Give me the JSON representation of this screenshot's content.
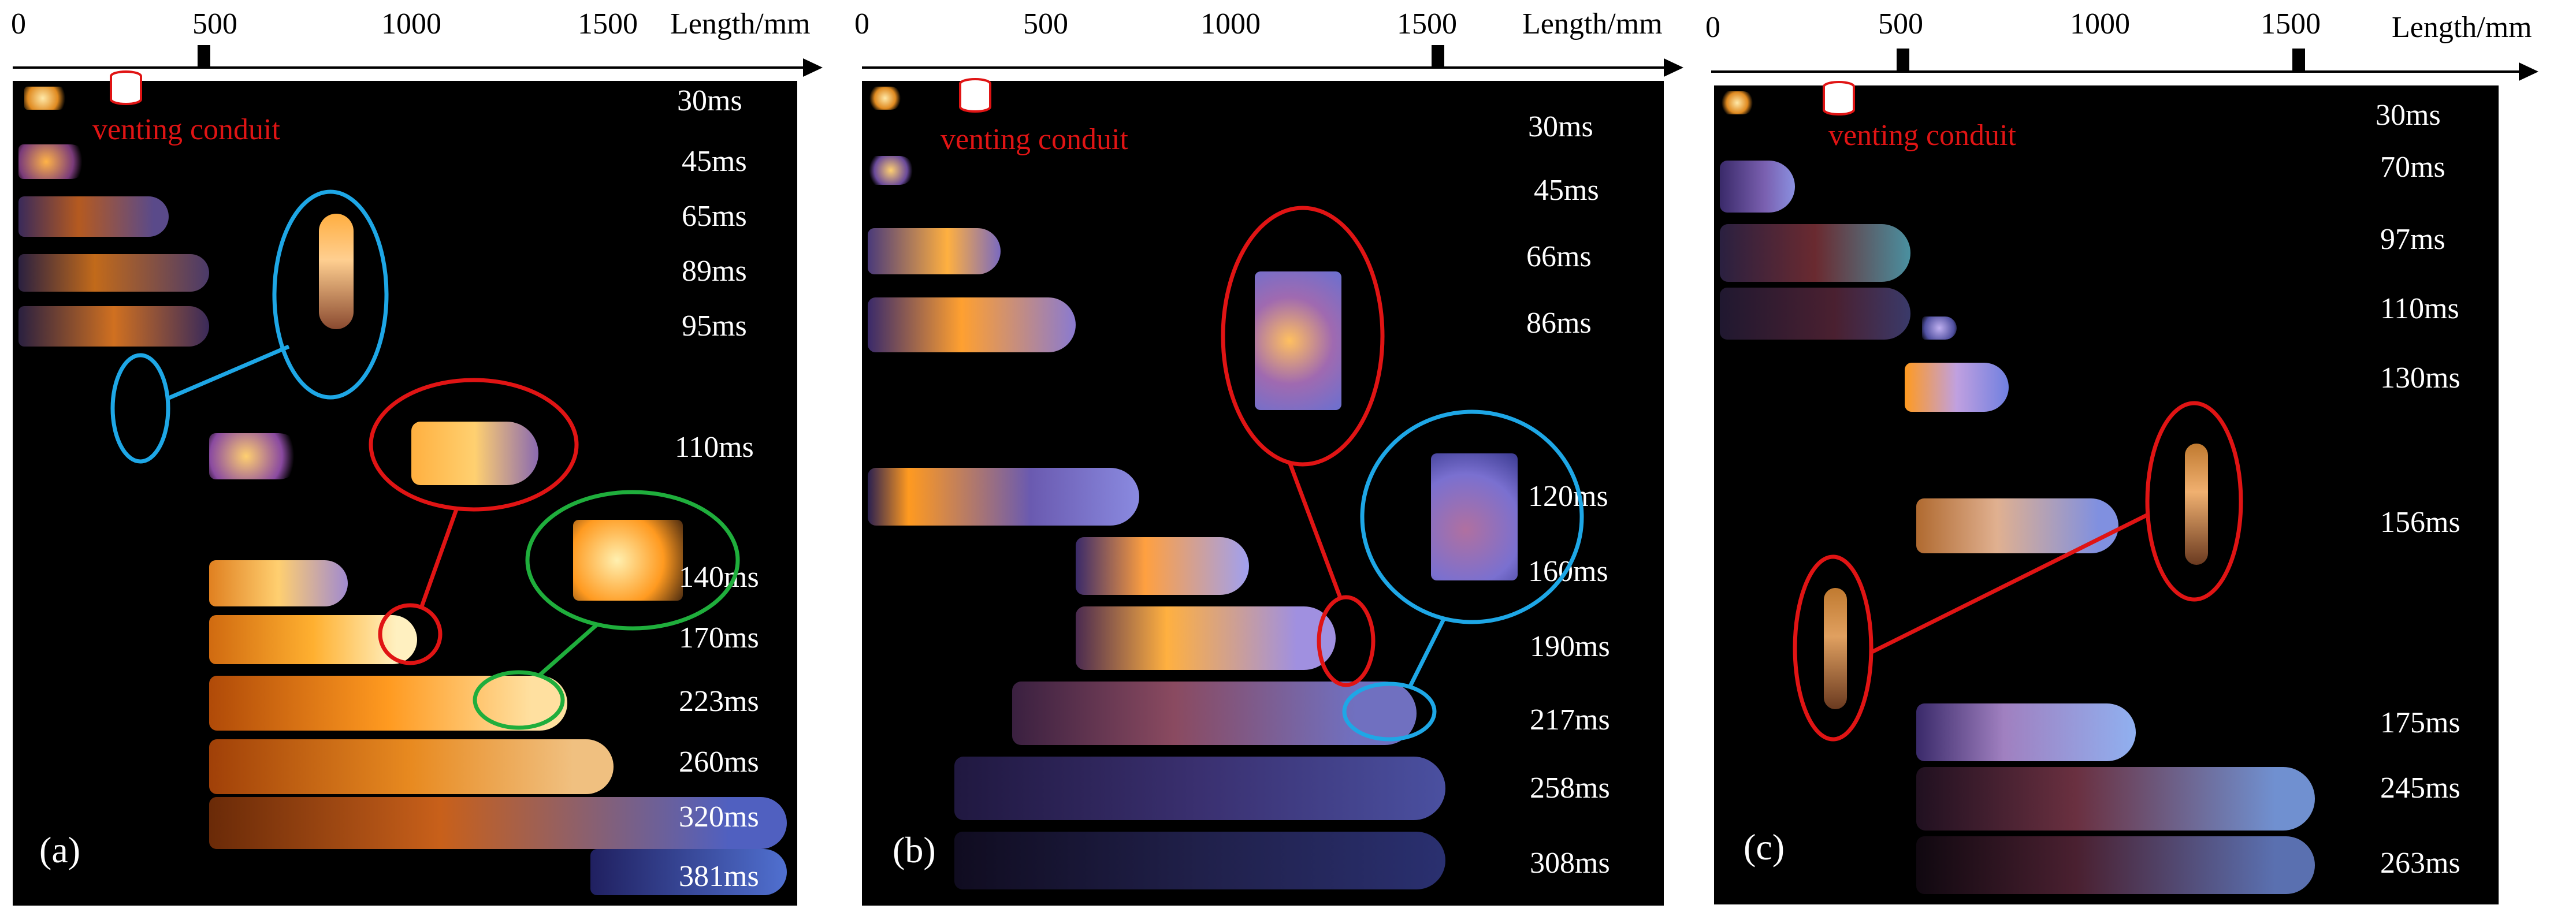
{
  "axis": {
    "title": "Length/mm",
    "ticks": [
      "0",
      "500",
      "1000",
      "1500"
    ]
  },
  "vent_label": "venting conduit",
  "panels": [
    {
      "label": "(a)",
      "times": [
        "30ms",
        "45ms",
        "65ms",
        "89ms",
        "95ms",
        "110ms",
        "140ms",
        "170ms",
        "223ms",
        "260ms",
        "320ms",
        "381ms"
      ]
    },
    {
      "label": "(b)",
      "times": [
        "30ms",
        "45ms",
        "66ms",
        "86ms",
        "120ms",
        "160ms",
        "190ms",
        "217ms",
        "258ms",
        "308ms"
      ]
    },
    {
      "label": "(c)",
      "times": [
        "30ms",
        "70ms",
        "97ms",
        "110ms",
        "130ms",
        "156ms",
        "175ms",
        "245ms",
        "263ms"
      ]
    }
  ],
  "colors": {
    "circle_blue": "#1ea7e6",
    "circle_red": "#e01414",
    "circle_green": "#1fae3c",
    "vent": "#e01414"
  }
}
